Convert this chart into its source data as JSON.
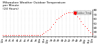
{
  "title": "Milwaukee Weather Outdoor Temperature\nper Minute\n(24 Hours)",
  "line_color": "#ff0000",
  "bg_color": "#ffffff",
  "grid_color": "#888888",
  "ylim": [
    20,
    80
  ],
  "yticks": [
    20,
    30,
    40,
    50,
    60,
    70,
    80
  ],
  "ytick_labels": [
    "20",
    "30",
    "40",
    "50",
    "60",
    "70",
    "80"
  ],
  "time_points": [
    0,
    30,
    60,
    90,
    120,
    150,
    180,
    210,
    240,
    270,
    300,
    330,
    360,
    390,
    420,
    450,
    480,
    510,
    540,
    570,
    600,
    630,
    660,
    690,
    720,
    750,
    780,
    810,
    840,
    870,
    900,
    930,
    960,
    990,
    1020,
    1050,
    1080,
    1110,
    1140,
    1170,
    1200,
    1230,
    1260,
    1290,
    1320,
    1350,
    1380,
    1410,
    1440
  ],
  "temps": [
    22,
    22,
    22,
    22,
    22,
    22,
    22,
    22,
    22,
    22,
    22,
    22,
    22,
    22,
    22,
    22,
    22,
    22,
    22,
    22,
    22,
    25,
    27,
    30,
    33,
    37,
    42,
    47,
    53,
    58,
    62,
    65,
    68,
    71,
    73,
    74,
    75,
    74,
    72,
    69,
    65,
    60,
    54,
    48,
    43,
    38,
    33,
    29,
    26
  ],
  "xtick_positions": [
    0,
    60,
    120,
    180,
    240,
    300,
    360,
    420,
    480,
    540,
    600,
    660,
    720,
    780,
    840,
    900,
    960,
    1020,
    1080,
    1140,
    1200,
    1260,
    1320,
    1380,
    1440
  ],
  "xtick_labels": [
    "12a",
    "1a",
    "2a",
    "3a",
    "4a",
    "5a",
    "6a",
    "7a",
    "8a",
    "9a",
    "10a",
    "11a",
    "12p",
    "1p",
    "2p",
    "3p",
    "4p",
    "5p",
    "6p",
    "7p",
    "8p",
    "9p",
    "10p",
    "11p",
    "12a"
  ],
  "legend_label": "Outdoor Temp",
  "marker_size": 2.0,
  "title_fontsize": 3.2,
  "tick_fontsize": 2.8
}
